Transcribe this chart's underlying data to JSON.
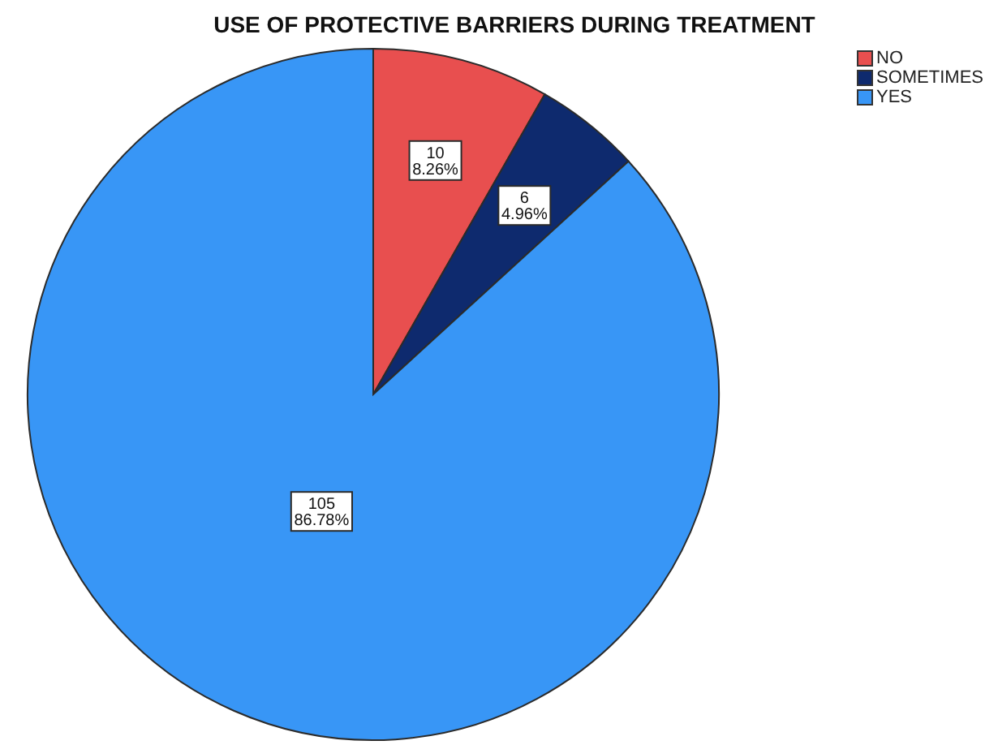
{
  "chart_data": {
    "type": "pie",
    "title": "USE OF PROTECTIVE BARRIERS DURING TREATMENT",
    "categories": [
      "NO",
      "SOMETIMES",
      "YES"
    ],
    "values": [
      10,
      6,
      105
    ],
    "colors": [
      "#e84f4f",
      "#0e2a6e",
      "#3896f6"
    ],
    "value_labels": [
      "10\n8.26%",
      "6\n4.96%",
      "105\n86.78%"
    ],
    "legend": "top right"
  }
}
